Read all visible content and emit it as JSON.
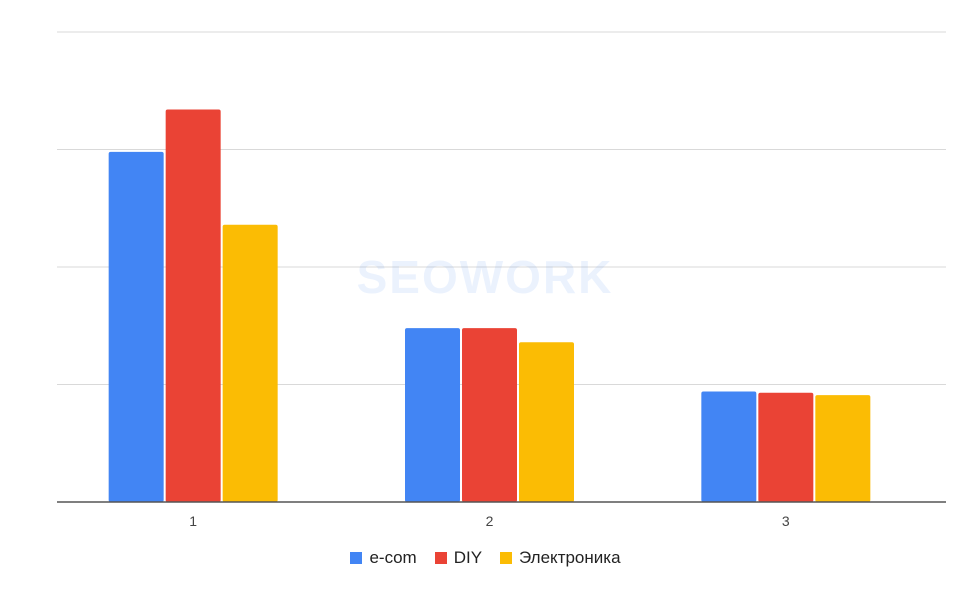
{
  "chart_data": {
    "type": "bar",
    "categories": [
      "1",
      "2",
      "3"
    ],
    "series": [
      {
        "name": "e-com",
        "color": "#4285F4",
        "values": [
          2.98,
          1.48,
          0.94
        ]
      },
      {
        "name": "DIY",
        "color": "#EA4335",
        "values": [
          3.34,
          1.48,
          0.93
        ]
      },
      {
        "name": "Электроника",
        "color": "#FBBC04",
        "values": [
          2.36,
          1.36,
          0.91
        ]
      }
    ],
    "ylim": [
      0,
      4
    ],
    "y_gridlines": [
      1,
      2,
      3,
      4
    ],
    "y_tick_labels_shown": false,
    "grid": true,
    "legend_position": "bottom",
    "title": "",
    "xlabel": "",
    "ylabel": ""
  },
  "watermark": "SEOWORK",
  "colors": {
    "grid": "#d9d9d9",
    "axis": "#555555",
    "background": "#ffffff"
  }
}
